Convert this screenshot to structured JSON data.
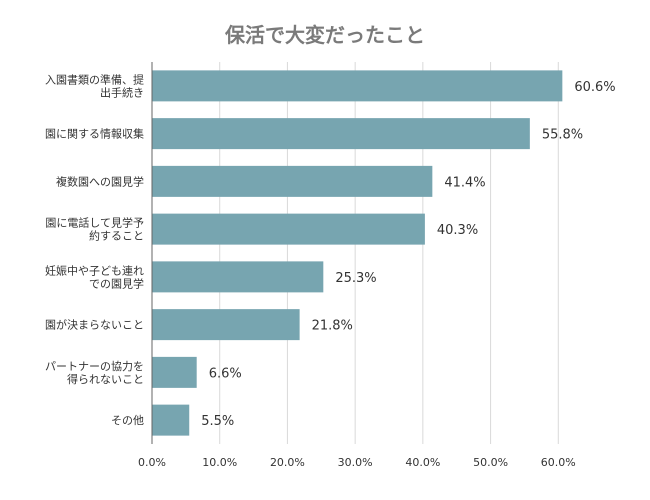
{
  "chart_data": {
    "type": "bar",
    "orientation": "horizontal",
    "title": "保活で大変だったこと",
    "categories": [
      [
        "入園書類の準備、提",
        "出手続き"
      ],
      [
        "園に関する情報収集"
      ],
      [
        "複数園への園見学"
      ],
      [
        "園に電話して見学予",
        "約すること"
      ],
      [
        "妊娠中や子ども連れ",
        "での園見学"
      ],
      [
        "園が決まらないこと"
      ],
      [
        "パートナーの協力を",
        "得られないこと"
      ],
      [
        "その他"
      ]
    ],
    "values": [
      60.6,
      55.8,
      41.4,
      40.3,
      25.3,
      21.8,
      6.6,
      5.5
    ],
    "value_labels": [
      "60.6%",
      "55.8%",
      "41.4%",
      "40.3%",
      "25.3%",
      "21.8%",
      "6.6%",
      "5.5%"
    ],
    "xlim": [
      0,
      70
    ],
    "xticks": [
      0,
      10,
      20,
      30,
      40,
      50,
      60
    ],
    "xtick_labels": [
      "0.0%",
      "10.0%",
      "20.0%",
      "30.0%",
      "40.0%",
      "50.0%",
      "60.0%"
    ],
    "grid": true,
    "colors": {
      "bar": "#77a5b0",
      "title": "#7a7a7a",
      "grid": "#d9d9d9",
      "axis": "#666666",
      "text": "#333333"
    }
  }
}
